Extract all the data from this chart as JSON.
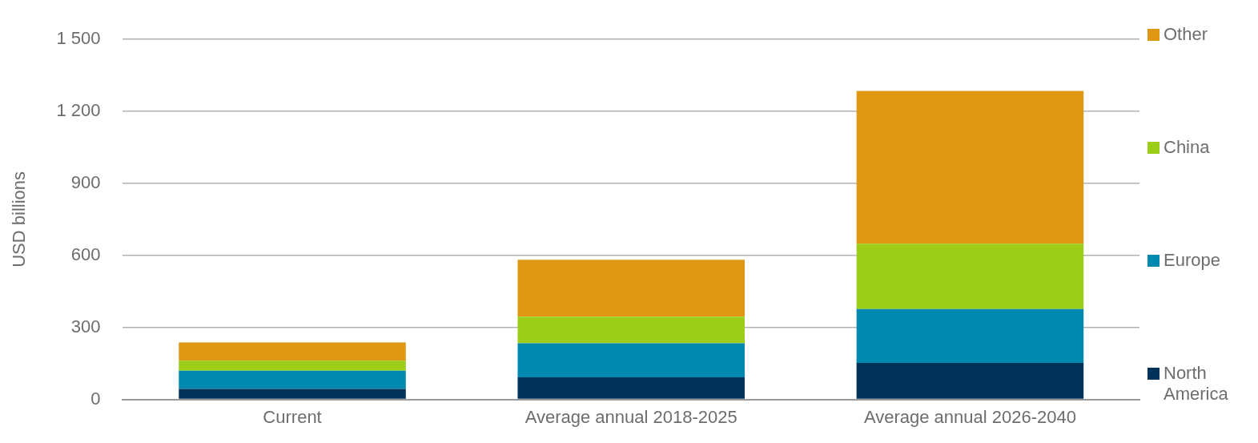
{
  "chart_data": {
    "type": "bar",
    "stacked": true,
    "ylabel": "USD billions",
    "categories": [
      "Current",
      "Average annual 2018-2025",
      "Average annual 2026-2040"
    ],
    "series": [
      {
        "name": "North America",
        "color": "#00325a",
        "values": [
          44,
          92,
          152
        ]
      },
      {
        "name": "Europe",
        "color": "#008ab0",
        "values": [
          76,
          142,
          225
        ]
      },
      {
        "name": "China",
        "color": "#9ccd19",
        "values": [
          41,
          111,
          272
        ]
      },
      {
        "name": "Other",
        "color": "#e09714",
        "values": [
          76,
          237,
          636
        ]
      }
    ],
    "ylim": [
      0,
      1500
    ],
    "yticks": [
      0,
      300,
      600,
      900,
      {
        "value": 1200,
        "label": "1 200"
      },
      {
        "value": 1500,
        "label": "1 500"
      }
    ],
    "grid": "y",
    "legend": "right"
  }
}
